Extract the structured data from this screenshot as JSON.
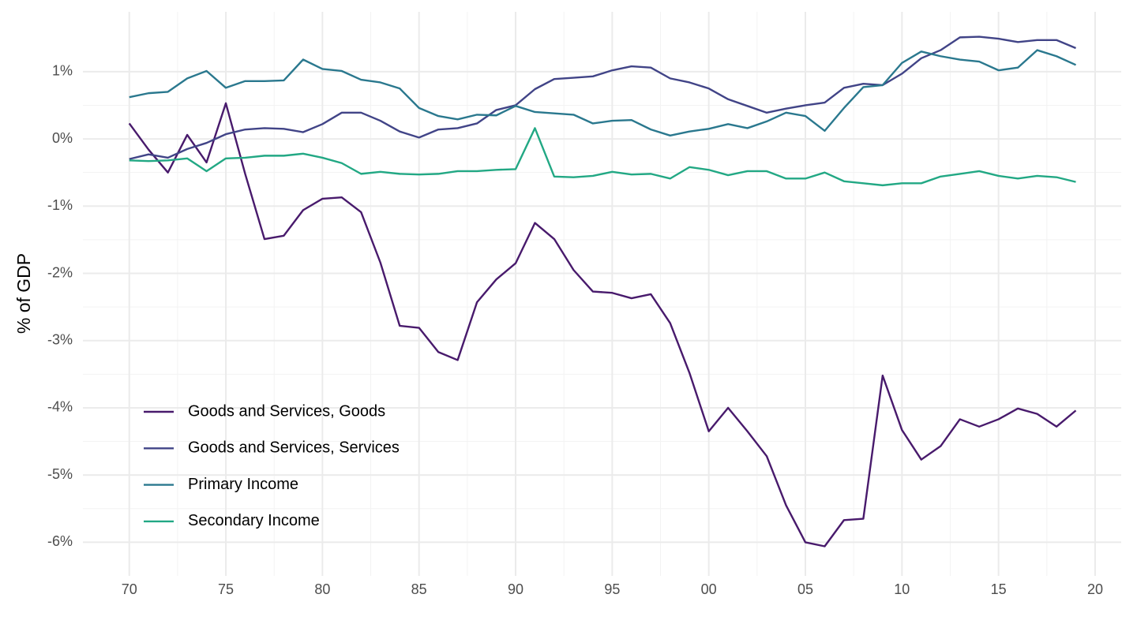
{
  "chart_data": {
    "type": "line",
    "y_label": "% of GDP",
    "x": [
      1970,
      1971,
      1972,
      1973,
      1974,
      1975,
      1976,
      1977,
      1978,
      1979,
      1980,
      1981,
      1982,
      1983,
      1984,
      1985,
      1986,
      1987,
      1988,
      1989,
      1990,
      1991,
      1992,
      1993,
      1994,
      1995,
      1996,
      1997,
      1998,
      1999,
      2000,
      2001,
      2002,
      2003,
      2004,
      2005,
      2006,
      2007,
      2008,
      2009,
      2010,
      2011,
      2012,
      2013,
      2014,
      2015,
      2016,
      2017,
      2018,
      2019
    ],
    "series": [
      {
        "name": "Goods and Services, Goods",
        "color": "#481a6c",
        "values": [
          0.23,
          -0.16,
          -0.5,
          0.06,
          -0.35,
          0.53,
          -0.52,
          -1.49,
          -1.44,
          -1.06,
          -0.89,
          -0.87,
          -1.09,
          -1.84,
          -2.78,
          -2.81,
          -3.17,
          -3.29,
          -2.43,
          -2.09,
          -1.85,
          -1.25,
          -1.49,
          -1.95,
          -2.27,
          -2.29,
          -2.37,
          -2.31,
          -2.74,
          -3.48,
          -4.35,
          -4.0,
          -4.35,
          -4.72,
          -5.45,
          -6.0,
          -6.06,
          -5.67,
          -5.65,
          -3.52,
          -4.33,
          -4.77,
          -4.57,
          -4.17,
          -4.28,
          -4.17,
          -4.01,
          -4.09,
          -4.28,
          -4.04
        ]
      },
      {
        "name": "Goods and Services, Services",
        "color": "#414487",
        "values": [
          -0.3,
          -0.23,
          -0.28,
          -0.15,
          -0.06,
          0.07,
          0.14,
          0.16,
          0.15,
          0.1,
          0.22,
          0.39,
          0.39,
          0.27,
          0.11,
          0.02,
          0.14,
          0.16,
          0.23,
          0.43,
          0.5,
          0.74,
          0.89,
          0.91,
          0.93,
          1.02,
          1.08,
          1.06,
          0.9,
          0.84,
          0.75,
          0.59,
          0.49,
          0.39,
          0.45,
          0.5,
          0.54,
          0.76,
          0.82,
          0.8,
          0.97,
          1.2,
          1.32,
          1.51,
          1.52,
          1.49,
          1.44,
          1.47,
          1.47,
          1.35
        ]
      },
      {
        "name": "Primary Income",
        "color": "#2a788e",
        "values": [
          0.62,
          0.68,
          0.7,
          0.9,
          1.01,
          0.76,
          0.86,
          0.86,
          0.87,
          1.18,
          1.04,
          1.01,
          0.88,
          0.84,
          0.75,
          0.46,
          0.34,
          0.29,
          0.36,
          0.35,
          0.49,
          0.4,
          0.38,
          0.36,
          0.23,
          0.27,
          0.28,
          0.14,
          0.05,
          0.11,
          0.15,
          0.22,
          0.16,
          0.26,
          0.39,
          0.34,
          0.12,
          0.46,
          0.77,
          0.8,
          1.13,
          1.3,
          1.23,
          1.18,
          1.15,
          1.02,
          1.06,
          1.32,
          1.23,
          1.1
        ]
      },
      {
        "name": "Secondary Income",
        "color": "#22a884",
        "values": [
          -0.32,
          -0.33,
          -0.32,
          -0.29,
          -0.48,
          -0.29,
          -0.28,
          -0.25,
          -0.25,
          -0.22,
          -0.28,
          -0.36,
          -0.52,
          -0.49,
          -0.52,
          -0.53,
          -0.52,
          -0.48,
          -0.48,
          -0.46,
          -0.45,
          0.16,
          -0.56,
          -0.57,
          -0.55,
          -0.49,
          -0.53,
          -0.52,
          -0.59,
          -0.42,
          -0.46,
          -0.54,
          -0.48,
          -0.48,
          -0.59,
          -0.59,
          -0.5,
          -0.63,
          -0.66,
          -0.69,
          -0.66,
          -0.66,
          -0.56,
          -0.52,
          -0.48,
          -0.55,
          -0.59,
          -0.55,
          -0.57,
          -0.64
        ]
      }
    ],
    "xlim": [
      1967.6,
      2021.35
    ],
    "xticks": [
      {
        "value": 1970,
        "label": "70"
      },
      {
        "value": 1975,
        "label": "75"
      },
      {
        "value": 1980,
        "label": "80"
      },
      {
        "value": 1985,
        "label": "85"
      },
      {
        "value": 1990,
        "label": "90"
      },
      {
        "value": 1995,
        "label": "95"
      },
      {
        "value": 2000,
        "label": "00"
      },
      {
        "value": 2005,
        "label": "05"
      },
      {
        "value": 2010,
        "label": "10"
      },
      {
        "value": 2015,
        "label": "15"
      },
      {
        "value": 2020,
        "label": "20"
      }
    ],
    "ylim": [
      -6.5,
      1.89
    ],
    "yticks": [
      {
        "value": -6,
        "label": "-6%"
      },
      {
        "value": -5,
        "label": "-5%"
      },
      {
        "value": -4,
        "label": "-4%"
      },
      {
        "value": -3,
        "label": "-3%"
      },
      {
        "value": -2,
        "label": "-2%"
      },
      {
        "value": -1,
        "label": "-1%"
      },
      {
        "value": 0,
        "label": "0%"
      },
      {
        "value": 1,
        "label": "1%"
      }
    ],
    "grid": true,
    "legend_position": "bottom-left"
  }
}
